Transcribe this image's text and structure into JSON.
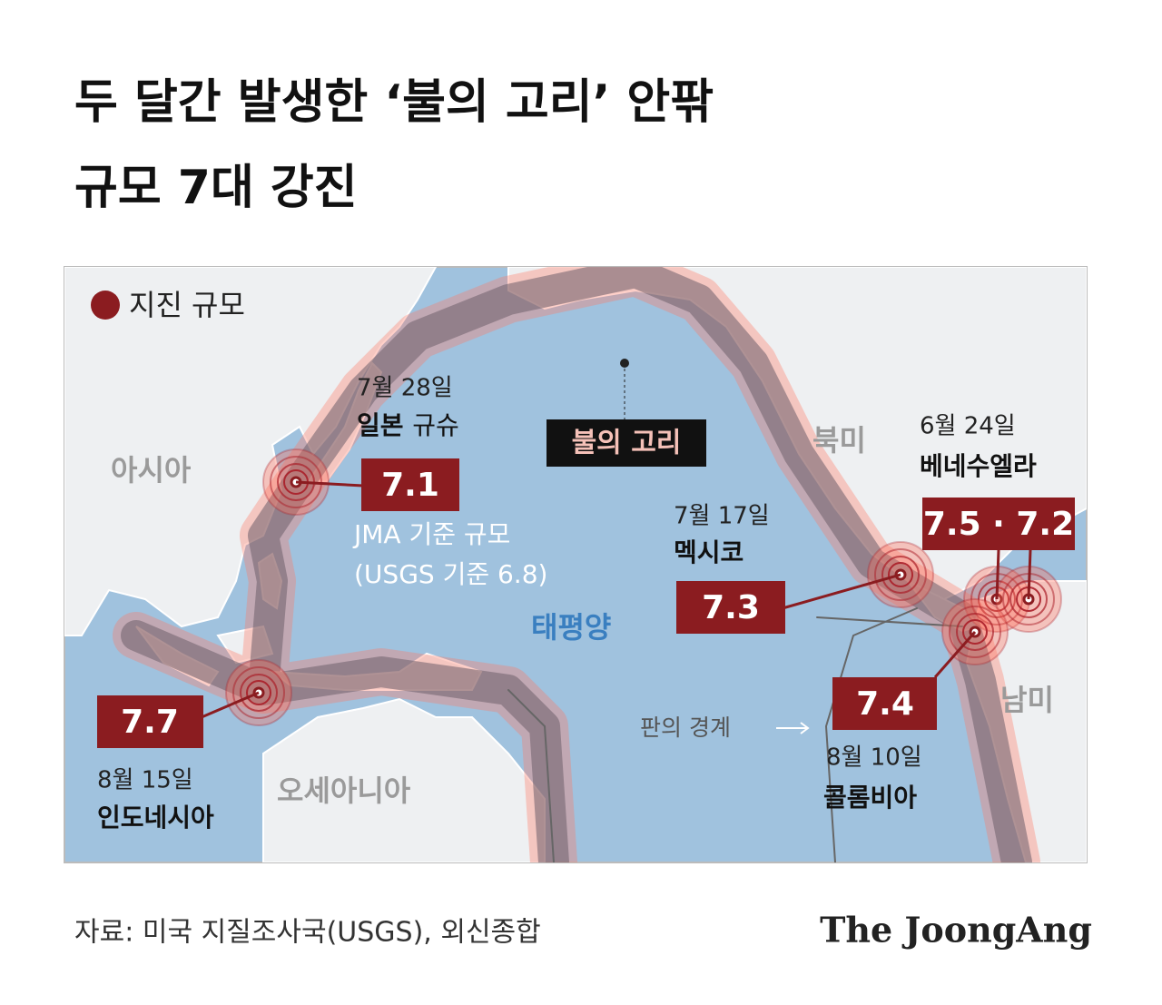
{
  "title": {
    "line1": "두 달간 발생한 ‘불의 고리’ 안팎",
    "line2": "규모 7대 강진"
  },
  "legend": {
    "label": "지진 규모"
  },
  "regions": {
    "asia": "아시아",
    "north_america": "북미",
    "pacific": "태평양",
    "south_america": "남미",
    "oceania": "오세아니아"
  },
  "ring_label": "불의 고리",
  "plate_boundary": "판의 경계",
  "quakes": [
    {
      "date": "7월 28일",
      "place": "일본",
      "place_detail": "규슈",
      "magnitude": "7.1",
      "note": [
        "JMA 기준 규모",
        "(USGS 기준 6.8)"
      ]
    },
    {
      "date": "7월 17일",
      "place": "멕시코",
      "magnitude": "7.3"
    },
    {
      "date": "6월 24일",
      "place": "베네수엘라",
      "magnitude": "7.5 · 7.2"
    },
    {
      "date": "8월 10일",
      "place": "콜롬비아",
      "magnitude": "7.4"
    },
    {
      "date": "8월 15일",
      "place": "인도네시아",
      "magnitude": "7.7"
    }
  ],
  "footer": {
    "source": "자료: 미국 지질조사국(USGS), 외신종합",
    "brand": "The JoongAng"
  }
}
